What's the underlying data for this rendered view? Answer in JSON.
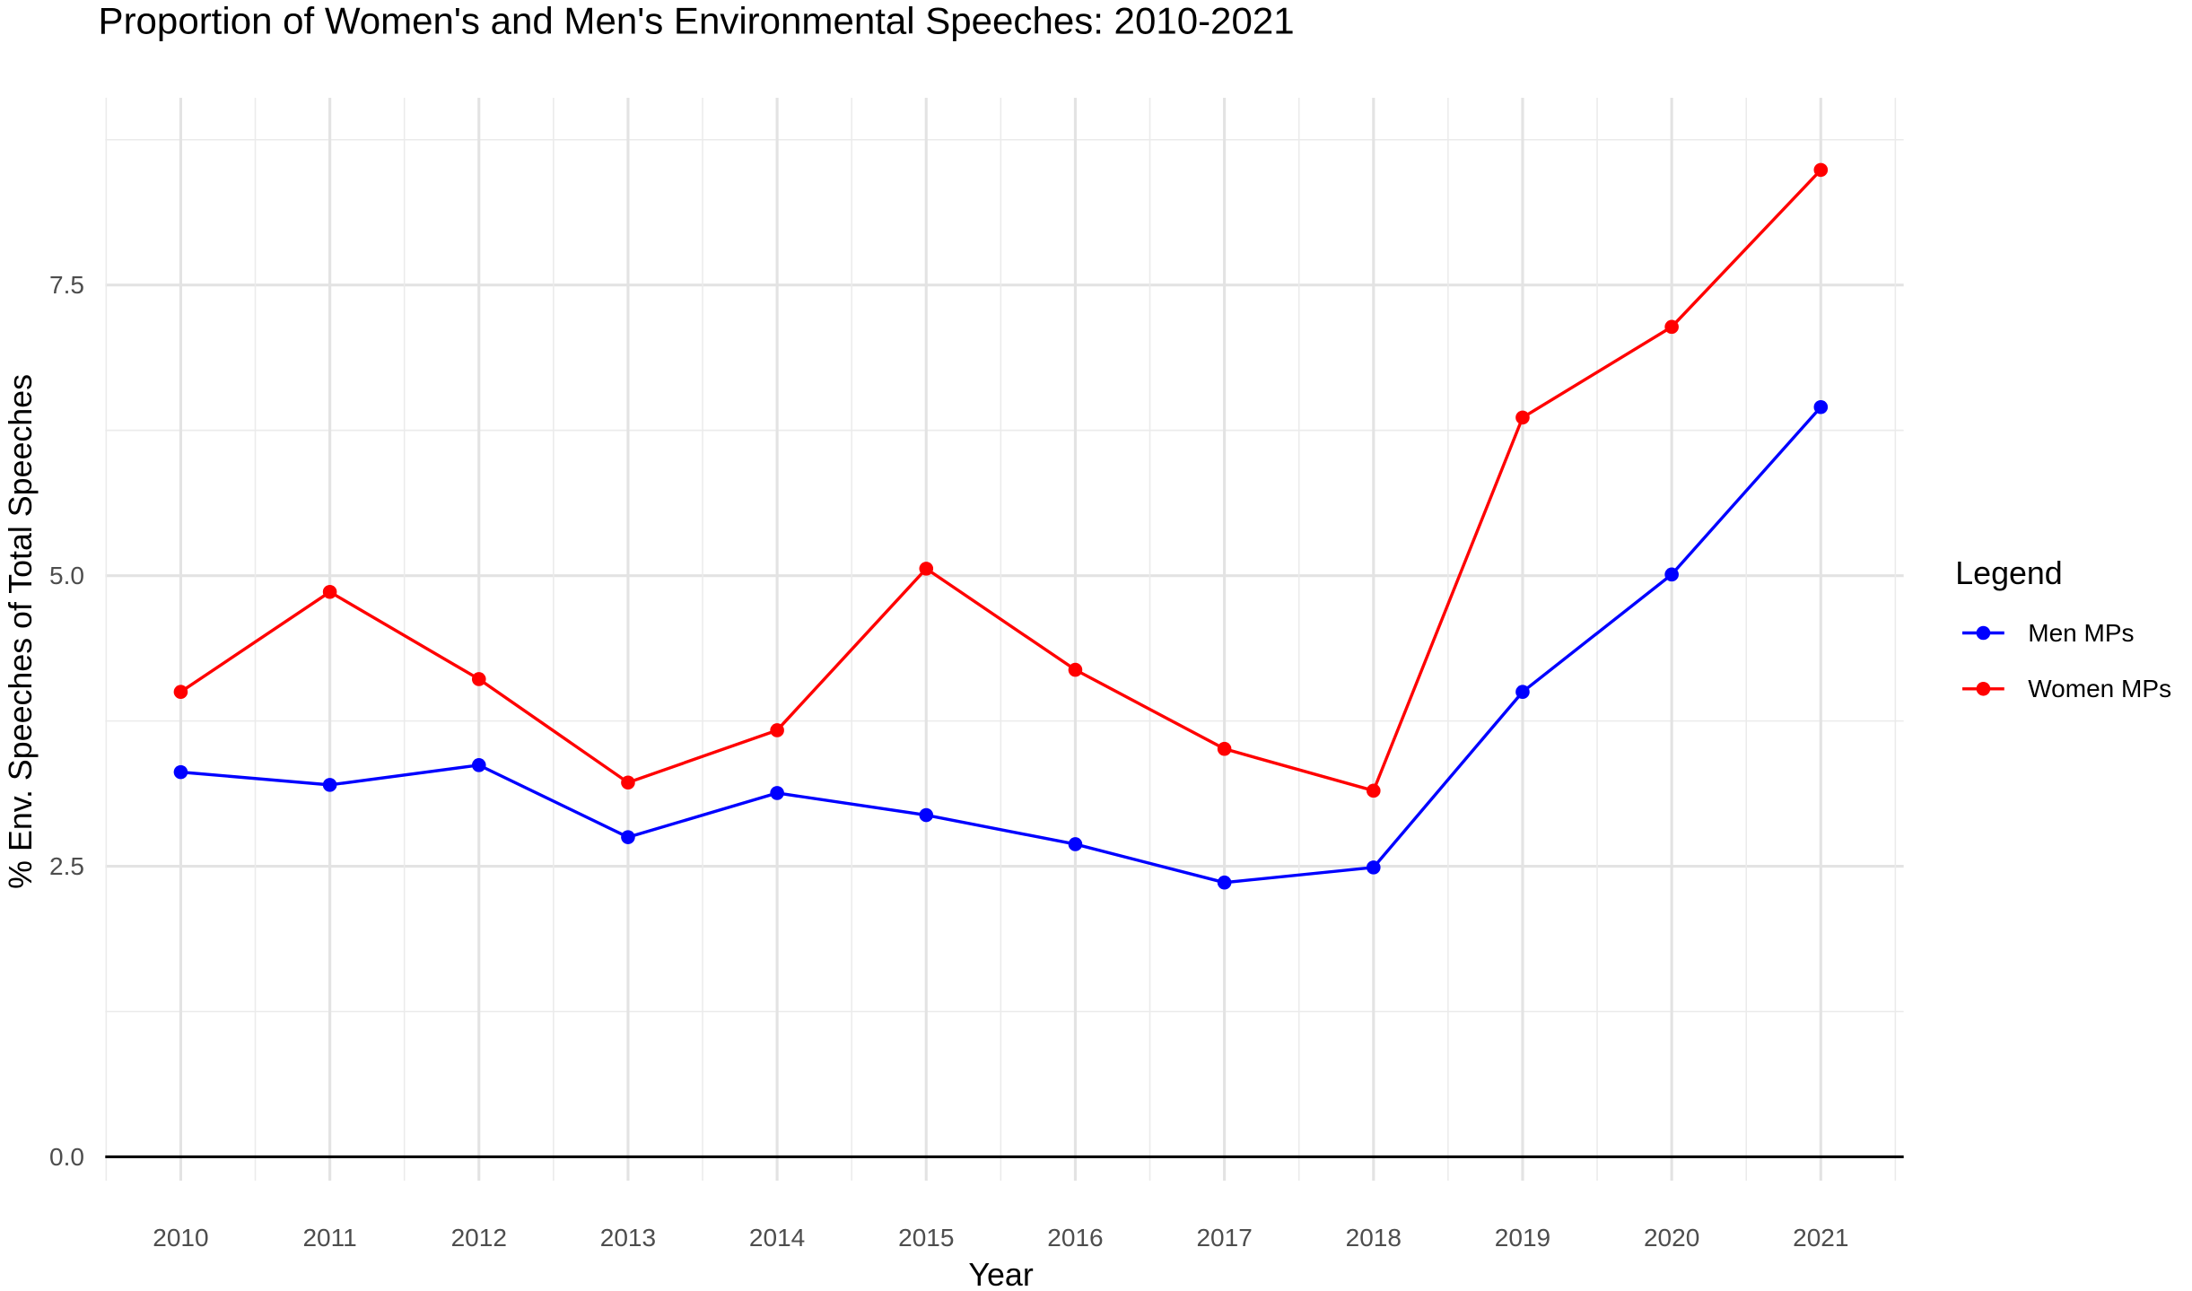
{
  "chart_data": {
    "type": "line",
    "title": "Proportion of Women's and Men's Environmental Speeches: 2010-2021",
    "xlabel": "Year",
    "ylabel": "% Env. Speeches of Total Speeches",
    "x": [
      2010,
      2011,
      2012,
      2013,
      2014,
      2015,
      2016,
      2017,
      2018,
      2019,
      2020,
      2021
    ],
    "x_tick_labels": [
      "2010",
      "2011",
      "2012",
      "2013",
      "2014",
      "2015",
      "2016",
      "2017",
      "2018",
      "2019",
      "2020",
      "2021"
    ],
    "y_ticks": [
      0,
      2.5,
      5,
      7.5
    ],
    "y_tick_labels": [
      "0.0",
      "2.5",
      "5.0",
      "7.5"
    ],
    "grid": true,
    "hline": 0,
    "legend": {
      "title": "Legend",
      "placement": "right"
    },
    "series": [
      {
        "name": "Men MPs",
        "color": "#0000FF",
        "values": [
          3.31,
          3.2,
          3.37,
          2.75,
          3.13,
          2.94,
          2.69,
          2.36,
          2.49,
          4.0,
          5.01,
          6.45
        ]
      },
      {
        "name": "Women MPs",
        "color": "#FF0000",
        "values": [
          4.0,
          4.86,
          4.11,
          3.22,
          3.67,
          5.06,
          4.19,
          3.51,
          3.15,
          6.36,
          7.14,
          8.49
        ]
      }
    ]
  }
}
